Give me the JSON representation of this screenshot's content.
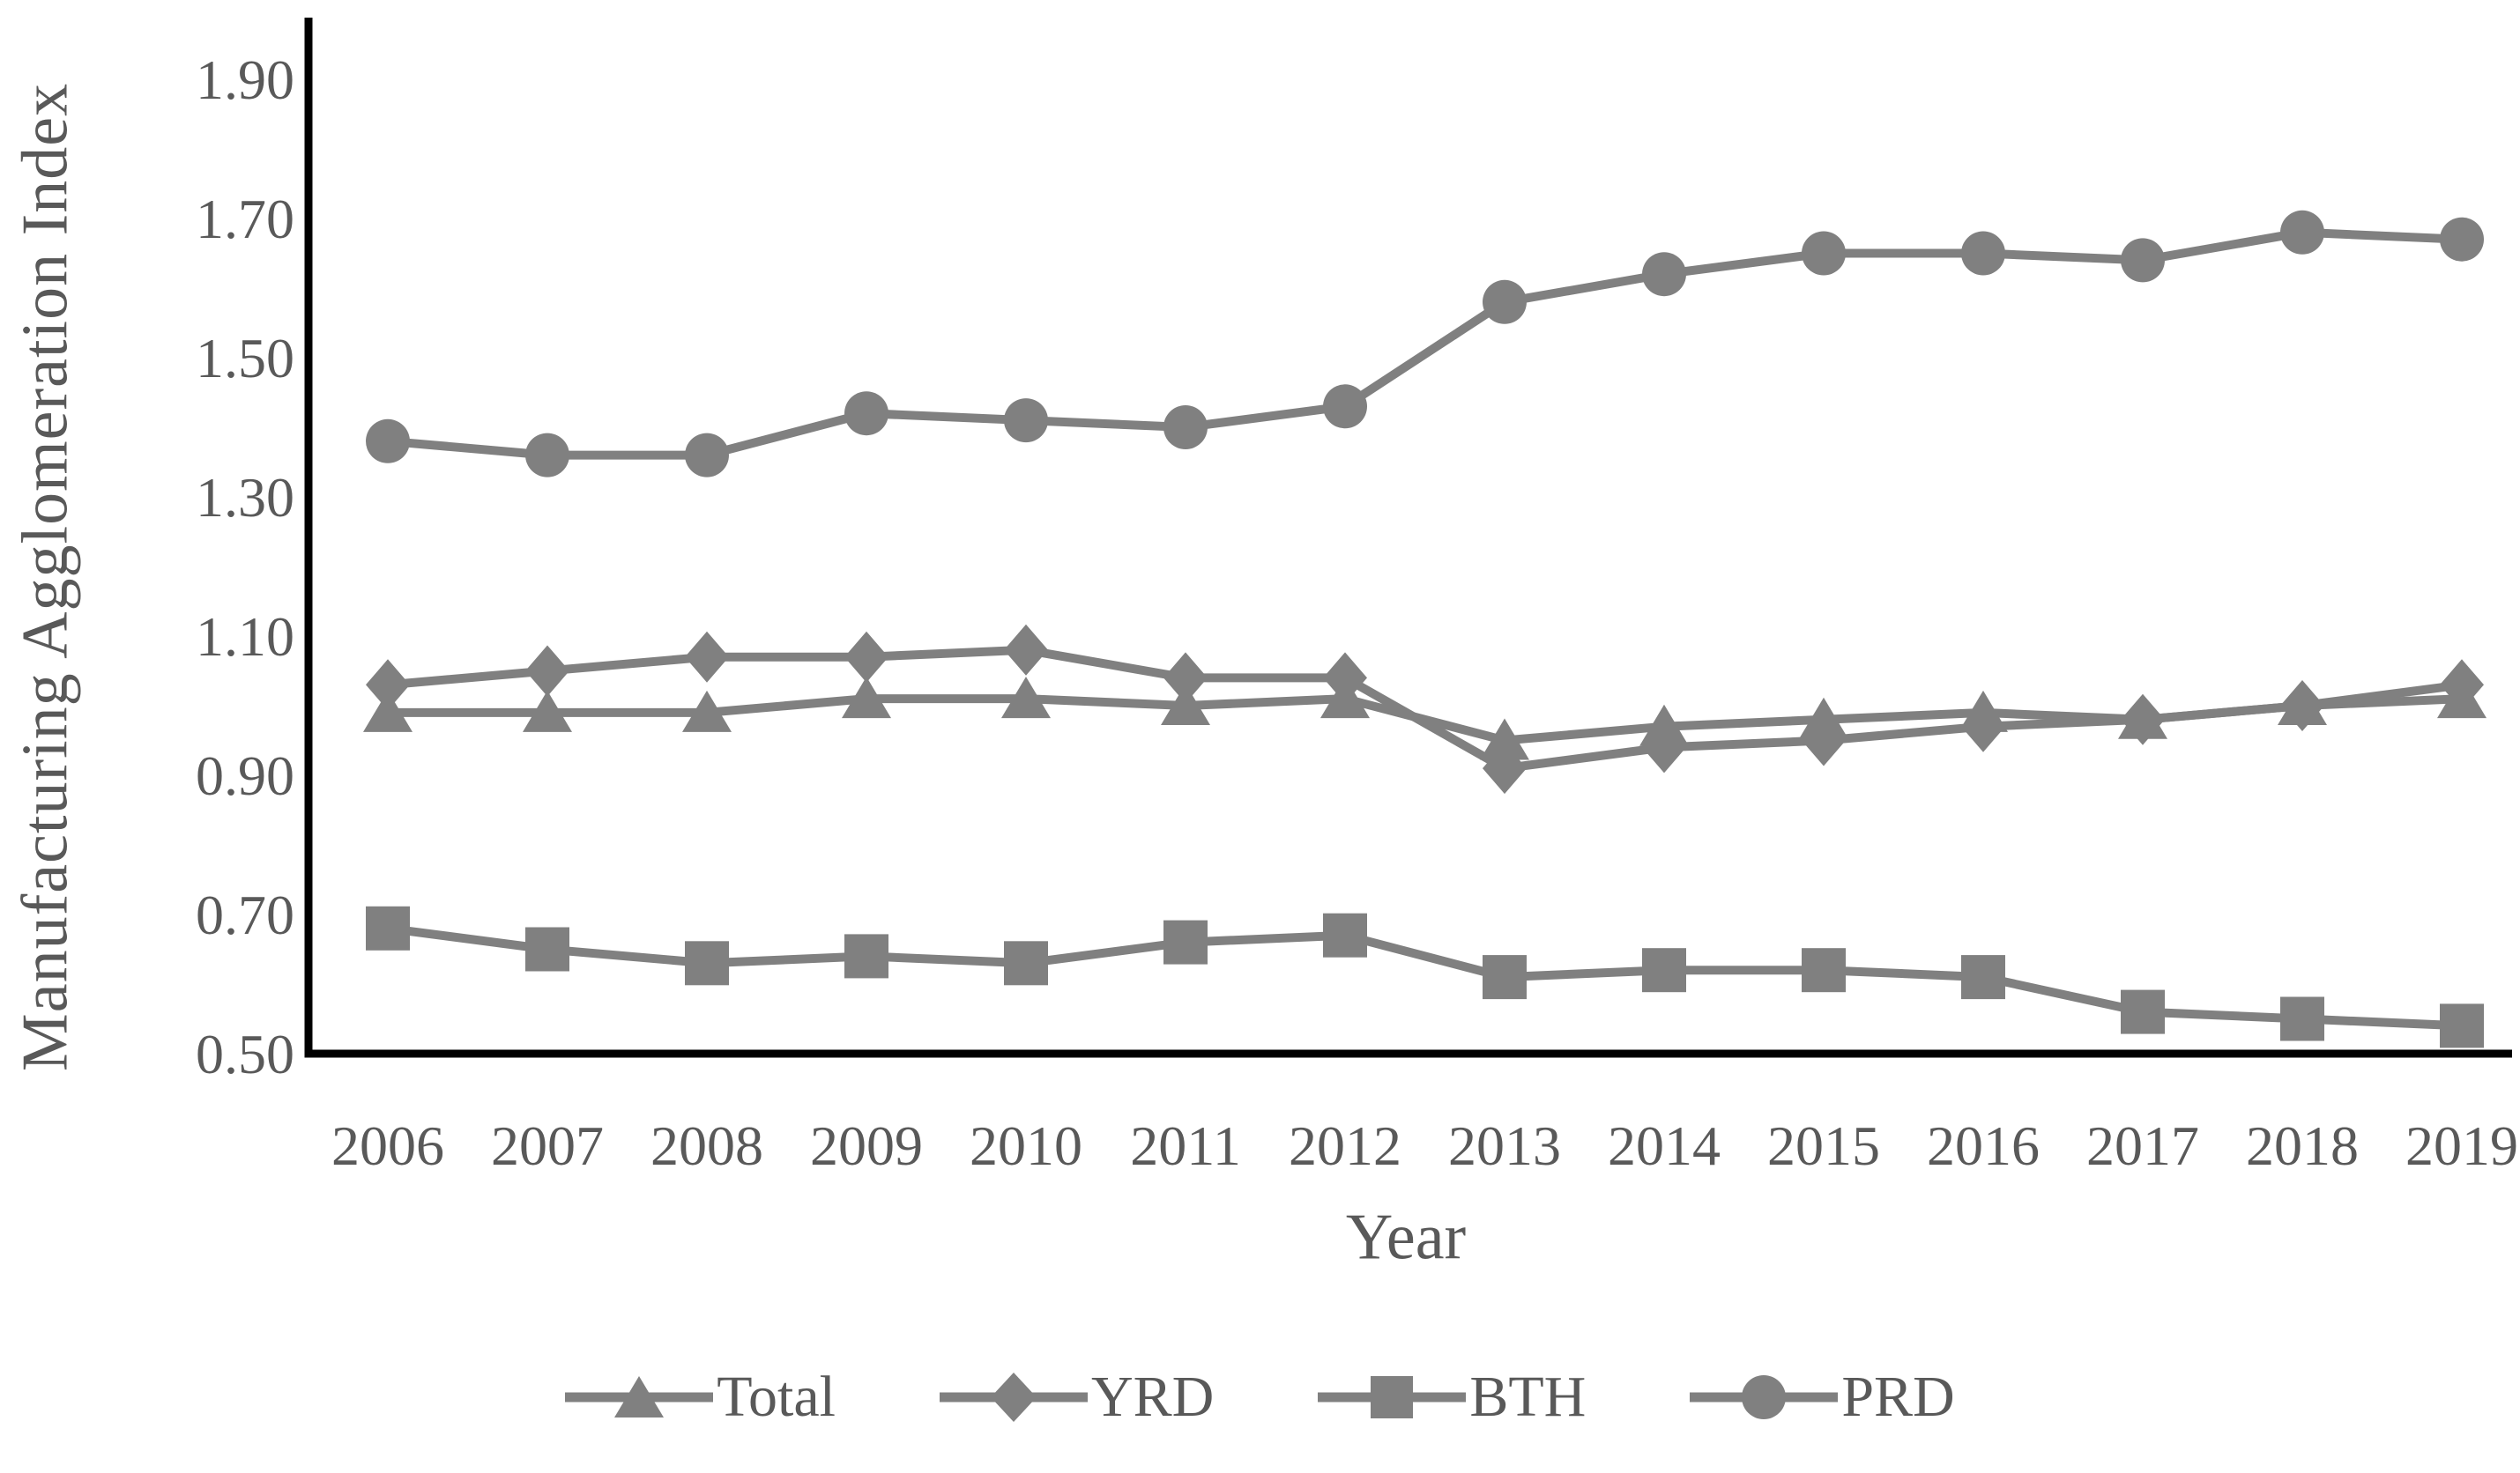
{
  "colors": {
    "series": "#808080",
    "text": "#595959",
    "axis": "#000000",
    "background": "#ffffff"
  },
  "chart_data": {
    "type": "line",
    "title": "",
    "xlabel": "Year",
    "ylabel": "Manufacturing Agglomeration Index",
    "x": [
      2006,
      2007,
      2008,
      2009,
      2010,
      2011,
      2012,
      2013,
      2014,
      2015,
      2016,
      2017,
      2018,
      2019
    ],
    "x_tick_labels": [
      "2006",
      "2007",
      "2008",
      "2009",
      "2010",
      "2011",
      "2012",
      "2013",
      "2014",
      "2015",
      "2016",
      "2017",
      "2018",
      "2019"
    ],
    "y_ticks": [
      0.5,
      0.7,
      0.9,
      1.1,
      1.3,
      1.5,
      1.7,
      1.9
    ],
    "y_tick_labels": [
      "0.50",
      "0.70",
      "0.90",
      "1.10",
      "1.30",
      "1.50",
      "1.70",
      "1.90"
    ],
    "ylim": [
      0.5,
      1.9
    ],
    "grid": false,
    "legend_position": "bottom",
    "series": [
      {
        "name": "Total",
        "marker": "triangle",
        "values": [
          0.99,
          0.99,
          0.99,
          1.01,
          1.01,
          1.0,
          1.01,
          0.95,
          0.97,
          0.98,
          0.99,
          0.98,
          1.0,
          1.01
        ]
      },
      {
        "name": "YRD",
        "marker": "diamond",
        "values": [
          1.03,
          1.05,
          1.07,
          1.07,
          1.08,
          1.04,
          1.04,
          0.91,
          0.94,
          0.95,
          0.97,
          0.98,
          1.0,
          1.03
        ]
      },
      {
        "name": "BTH",
        "marker": "square",
        "values": [
          0.68,
          0.65,
          0.63,
          0.64,
          0.63,
          0.66,
          0.67,
          0.61,
          0.62,
          0.62,
          0.61,
          0.56,
          0.55,
          0.54
        ]
      },
      {
        "name": "PRD",
        "marker": "circle",
        "values": [
          1.38,
          1.36,
          1.36,
          1.42,
          1.41,
          1.4,
          1.43,
          1.58,
          1.62,
          1.65,
          1.65,
          1.64,
          1.68,
          1.67
        ]
      }
    ]
  }
}
